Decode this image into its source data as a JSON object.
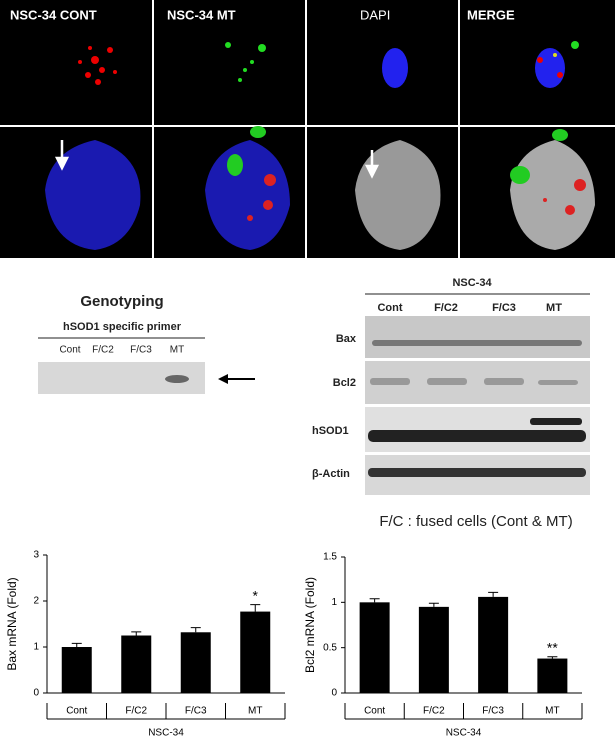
{
  "microscopy": {
    "labels": [
      "NSC-34 CONT",
      "NSC-34 MT",
      "DAPI",
      "MERGE"
    ]
  },
  "genotyping": {
    "title": "Genotyping",
    "primer": "hSOD1 specific primer",
    "lanes": [
      "Cont",
      "F/C2",
      "F/C3",
      "MT"
    ]
  },
  "western_blot": {
    "title": "NSC-34",
    "lanes": [
      "Cont",
      "F/C2",
      "F/C3",
      "MT"
    ],
    "rows": [
      "Bax",
      "Bcl2",
      "hSOD1",
      "β-Actin"
    ],
    "note": "F/C : fused cells (Cont & MT)"
  },
  "chart_data": [
    {
      "type": "bar",
      "ylabel": "Bax mRNA (Fold)",
      "xlabel": "NSC-34",
      "categories": [
        "Cont",
        "F/C2",
        "F/C3",
        "MT"
      ],
      "values": [
        1.0,
        1.25,
        1.32,
        1.77
      ],
      "errors": [
        0.08,
        0.08,
        0.1,
        0.15
      ],
      "color": "#000000",
      "ylim": [
        0,
        3
      ],
      "yticks": [
        0,
        1,
        2,
        3
      ],
      "annotations": [
        {
          "text": "*",
          "category": "MT"
        }
      ]
    },
    {
      "type": "bar",
      "ylabel": "Bcl2 mRNA (Fold)",
      "xlabel": "NSC-34",
      "categories": [
        "Cont",
        "F/C2",
        "F/C3",
        "MT"
      ],
      "values": [
        1.0,
        0.95,
        1.06,
        0.38
      ],
      "errors": [
        0.04,
        0.04,
        0.05,
        0.02
      ],
      "color": "#000000",
      "ylim": [
        0,
        1.5
      ],
      "yticks": [
        0,
        0.5,
        1,
        1.5
      ],
      "annotations": [
        {
          "text": "**",
          "category": "MT"
        }
      ]
    }
  ]
}
